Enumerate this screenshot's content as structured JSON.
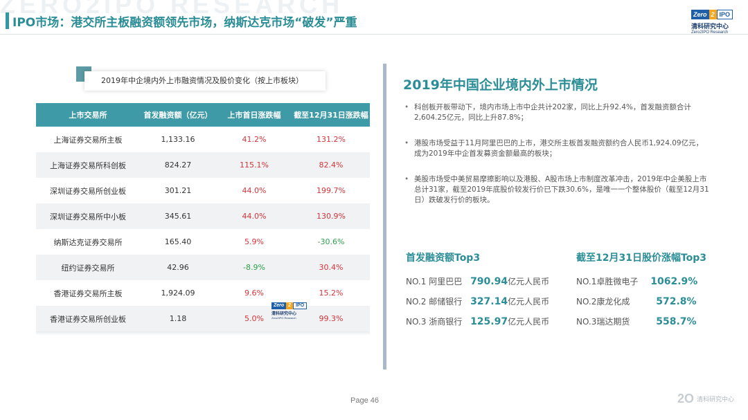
{
  "header": {
    "watermark": "ZERO2IPO RESEARCH",
    "title": "IPO市场：港交所主板融资额领先市场，纳斯达克市场“破发”严重"
  },
  "logo": {
    "zero": "Zero",
    "two": "2",
    "ipo": "IPO",
    "cn": "清科研究中心",
    "en": "Zero2IPO Research"
  },
  "table_caption": "2019年中企境内外上市融资情况及股价变化（按上市板块）",
  "table": {
    "headers": [
      "上市交易所",
      "首发融资额（亿元）",
      "上市首日涨跌幅",
      "截至12月31日涨跌幅"
    ],
    "rows": [
      {
        "exchange": "上海证券交易所主板",
        "amount": "1,133.16",
        "first_day": "41.2%",
        "ytd": "131.2%"
      },
      {
        "exchange": "上海证券交易所科创板",
        "amount": "824.27",
        "first_day": "115.1%",
        "ytd": "82.4%"
      },
      {
        "exchange": "深圳证券交易所创业板",
        "amount": "301.21",
        "first_day": "44.0%",
        "ytd": "199.7%"
      },
      {
        "exchange": "深圳证券交易所中小板",
        "amount": "345.61",
        "first_day": "44.0%",
        "ytd": "130.9%"
      },
      {
        "exchange": "纳斯达克证券交易所",
        "amount": "165.40",
        "first_day": "5.9%",
        "ytd": "-30.6%"
      },
      {
        "exchange": "纽约证券交易所",
        "amount": "42.96",
        "first_day": "-8.9%",
        "ytd": "30.4%"
      },
      {
        "exchange": "香港证券交易所主板",
        "amount": "1,924.09",
        "first_day": "9.6%",
        "ytd": "15.2%"
      },
      {
        "exchange": "香港证券交易所创业板",
        "amount": "1.18",
        "first_day": "5.0%",
        "ytd": "99.3%"
      }
    ],
    "colors": {
      "positive": "#d4343a",
      "negative": "#2e9f4b"
    }
  },
  "right": {
    "title": "2019年中国企业境内外上市情况",
    "bullets": [
      "科创板开板带动下，境内市场上市中企共计202家，同比上升92.4%，首发融资额合计2,604.25亿元，同比上升87.8%；",
      "港股市场受益于11月阿里巴巴的上市，港交所主板首发融资额约合人民币1,924.09亿元，成为2019年中企首发募资金额最高的板块；",
      "美股市场受中美贸易摩擦影响以及港股、A股市场上市制度改革冲击，2019年中企美股上市总计31家，截至2019年底股价较发行价已下跌30.6%，是唯一一个整体股价（截至12月31日）跌破发行价的板块。"
    ],
    "bullet_char": "•",
    "top3_funding": {
      "title": "首发融资额Top3",
      "items": [
        {
          "rank": "NO.1",
          "name": "阿里巴巴",
          "value": "790.94",
          "unit": "亿元人民币"
        },
        {
          "rank": "NO.2",
          "name": "邮储银行",
          "value": "327.14",
          "unit": "亿元人民币"
        },
        {
          "rank": "NO.3",
          "name": "浙商银行",
          "value": "125.97",
          "unit": "亿元人民币"
        }
      ]
    },
    "top3_gain": {
      "title": "截至12月31日股价涨幅Top3",
      "items": [
        {
          "rank": "NO.1",
          "name": "卓胜微电子",
          "value": "1062.9%"
        },
        {
          "rank": "NO.2",
          "name": "康龙化成",
          "value": "572.8%"
        },
        {
          "rank": "NO.3",
          "name": "瑞达期货",
          "value": "558.7%"
        }
      ]
    }
  },
  "footer": {
    "page": "Page 46",
    "logo_glyph": "2O",
    "logo_text": "清科研究中心"
  },
  "accent_color": "#2b8d96"
}
